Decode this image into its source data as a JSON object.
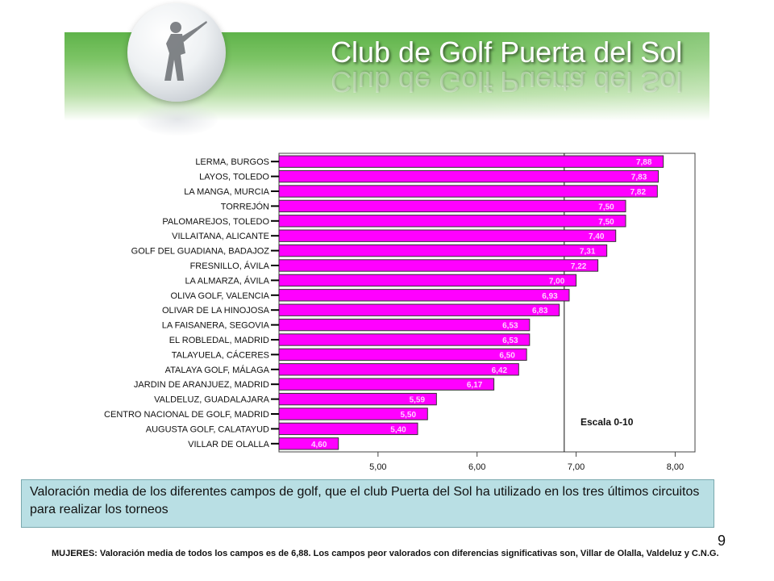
{
  "header": {
    "title": "Club de Golf Puerta del Sol"
  },
  "chart_data": {
    "type": "bar",
    "orientation": "horizontal",
    "categories": [
      "LERMA, BURGOS",
      "LAYOS, TOLEDO",
      "LA MANGA, MURCIA",
      "TORREJÓN",
      "PALOMAREJOS, TOLEDO",
      "VILLAITANA, ALICANTE",
      "GOLF DEL GUADIANA, BADAJOZ",
      "FRESNILLO, ÁVILA",
      "LA ALMARZA, ÁVILA",
      "OLIVA GOLF, VALENCIA",
      "OLIVAR DE LA HINOJOSA",
      "LA FAISANERA, SEGOVIA",
      "EL ROBLEDAL, MADRID",
      "TALAYUELA, CÁCERES",
      "ATALAYA GOLF, MÁLAGA",
      "JARDIN DE ARANJUEZ, MADRID",
      "VALDELUZ, GUADALAJARA",
      "CENTRO NACIONAL DE GOLF, MADRID",
      "AUGUSTA GOLF, CALATAYUD",
      "VILLAR DE OLALLA"
    ],
    "values": [
      7.88,
      7.83,
      7.82,
      7.5,
      7.5,
      7.4,
      7.31,
      7.22,
      7.0,
      6.93,
      6.83,
      6.53,
      6.53,
      6.5,
      6.42,
      6.17,
      5.59,
      5.5,
      5.4,
      4.6
    ],
    "value_labels": [
      "7,88",
      "7,83",
      "7,82",
      "7,50",
      "7,50",
      "7,40",
      "7,31",
      "7,22",
      "7,00",
      "6,93",
      "6,83",
      "6,53",
      "6,53",
      "6,50",
      "6,42",
      "6,17",
      "5,59",
      "5,50",
      "5,40",
      "4,60"
    ],
    "xlim": [
      4.0,
      8.2
    ],
    "xticks": [
      5,
      6,
      7,
      8
    ],
    "xtick_labels": [
      "5,00",
      "6,00",
      "7,00",
      "8,00"
    ],
    "reference_line": 6.88,
    "annotation": "Escala 0-10",
    "bar_color": "#ff00ff",
    "value_label_color": "#ffd0ff",
    "grid": false,
    "legend": "none"
  },
  "caption": "Valoración media de los diferentes campos de golf, que el club Puerta del Sol ha utilizado en los tres últimos circuitos para realizar los torneos",
  "page_number": "9",
  "note": "MUJERES: Valoración media de todos los campos es de 6,88. Los campos peor valorados con diferencias significativas son, Villar de Olalla, Valdeluz y C.N.G."
}
